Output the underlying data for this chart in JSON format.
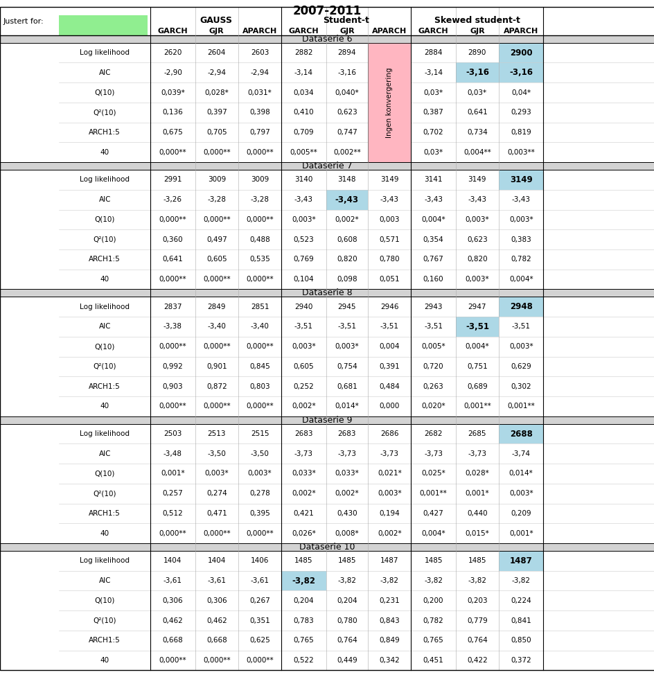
{
  "title": "2007-2011",
  "justert_for_label": "Justert for:",
  "green_box_color": "#90EE90",
  "header_group_labels": [
    "GAUSS",
    "Student-t",
    "Skewed student-t"
  ],
  "col_labels": [
    "GARCH",
    "GJR",
    "APARCH",
    "GARCH",
    "GJR",
    "APARCH",
    "GARCH",
    "GJR",
    "APARCH"
  ],
  "ingen_color": "#FFB6C1",
  "section_header_bg": "#D3D3D3",
  "highlight_color": "#ADD8E6",
  "dataseries": [
    {
      "name": "Dataserie 6",
      "ingen_col": 5,
      "highlight_log_col": 8,
      "highlight_aic_cols": [
        7,
        8
      ],
      "rows": [
        {
          "label": "Log likelihood",
          "values": [
            "2620",
            "2604",
            "2603",
            "2882",
            "2894",
            "",
            "2884",
            "2890",
            "2900"
          ]
        },
        {
          "label": "AIC",
          "values": [
            "-2,90",
            "-2,94",
            "-2,94",
            "-3,14",
            "-3,16",
            "",
            "-3,14",
            "-3,16",
            "-3,16"
          ]
        },
        {
          "label": "Q(10)",
          "values": [
            "0,039*",
            "0,028*",
            "0,031*",
            "0,034",
            "0,040*",
            "",
            "0,03*",
            "0,03*",
            "0,04*"
          ]
        },
        {
          "label": "Q²(10)",
          "values": [
            "0,136",
            "0,397",
            "0,398",
            "0,410",
            "0,623",
            "",
            "0,387",
            "0,641",
            "0,293"
          ]
        },
        {
          "label": "ARCH1:5",
          "values": [
            "0,675",
            "0,705",
            "0,797",
            "0,709",
            "0,747",
            "",
            "0,702",
            "0,734",
            "0,819"
          ]
        },
        {
          "label": "40",
          "values": [
            "0,000**",
            "0,000**",
            "0,000**",
            "0,005**",
            "0,002**",
            "",
            "0,03*",
            "0,004**",
            "0,003**"
          ]
        }
      ]
    },
    {
      "name": "Dataserie 7",
      "ingen_col": -1,
      "highlight_log_col": 8,
      "highlight_aic_cols": [
        4
      ],
      "rows": [
        {
          "label": "Log likelihood",
          "values": [
            "2991",
            "3009",
            "3009",
            "3140",
            "3148",
            "3149",
            "3141",
            "3149",
            "3149"
          ]
        },
        {
          "label": "AIC",
          "values": [
            "-3,26",
            "-3,28",
            "-3,28",
            "-3,43",
            "-3,43",
            "-3,43",
            "-3,43",
            "-3,43",
            "-3,43"
          ]
        },
        {
          "label": "Q(10)",
          "values": [
            "0,000**",
            "0,000**",
            "0,000**",
            "0,003*",
            "0,002*",
            "0,003",
            "0,004*",
            "0,003*",
            "0,003*"
          ]
        },
        {
          "label": "Q²(10)",
          "values": [
            "0,360",
            "0,497",
            "0,488",
            "0,523",
            "0,608",
            "0,571",
            "0,354",
            "0,623",
            "0,383"
          ]
        },
        {
          "label": "ARCH1:5",
          "values": [
            "0,641",
            "0,605",
            "0,535",
            "0,769",
            "0,820",
            "0,780",
            "0,767",
            "0,820",
            "0,782"
          ]
        },
        {
          "label": "40",
          "values": [
            "0,000**",
            "0,000**",
            "0,000**",
            "0,104",
            "0,098",
            "0,051",
            "0,160",
            "0,003*",
            "0,004*"
          ]
        }
      ]
    },
    {
      "name": "Dataserie 8",
      "ingen_col": -1,
      "highlight_log_col": 8,
      "highlight_aic_cols": [
        7
      ],
      "rows": [
        {
          "label": "Log likelihood",
          "values": [
            "2837",
            "2849",
            "2851",
            "2940",
            "2945",
            "2946",
            "2943",
            "2947",
            "2948"
          ]
        },
        {
          "label": "AIC",
          "values": [
            "-3,38",
            "-3,40",
            "-3,40",
            "-3,51",
            "-3,51",
            "-3,51",
            "-3,51",
            "-3,51",
            "-3,51"
          ]
        },
        {
          "label": "Q(10)",
          "values": [
            "0,000**",
            "0,000**",
            "0,000**",
            "0,003*",
            "0,003*",
            "0,004",
            "0,005*",
            "0,004*",
            "0,003*"
          ]
        },
        {
          "label": "Q²(10)",
          "values": [
            "0,992",
            "0,901",
            "0,845",
            "0,605",
            "0,754",
            "0,391",
            "0,720",
            "0,751",
            "0,629"
          ]
        },
        {
          "label": "ARCH1:5",
          "values": [
            "0,903",
            "0,872",
            "0,803",
            "0,252",
            "0,681",
            "0,484",
            "0,263",
            "0,689",
            "0,302"
          ]
        },
        {
          "label": "40",
          "values": [
            "0,000**",
            "0,000**",
            "0,000**",
            "0,002*",
            "0,014*",
            "0,000",
            "0,020*",
            "0,001**",
            "0,001**"
          ]
        }
      ]
    },
    {
      "name": "Dataserie 9",
      "ingen_col": -1,
      "highlight_log_col": 8,
      "highlight_aic_cols": [],
      "rows": [
        {
          "label": "Log likelihood",
          "values": [
            "2503",
            "2513",
            "2515",
            "2683",
            "2683",
            "2686",
            "2682",
            "2685",
            "2688"
          ]
        },
        {
          "label": "AIC",
          "values": [
            "-3,48",
            "-3,50",
            "-3,50",
            "-3,73",
            "-3,73",
            "-3,73",
            "-3,73",
            "-3,73",
            "-3,74"
          ]
        },
        {
          "label": "Q(10)",
          "values": [
            "0,001*",
            "0,003*",
            "0,003*",
            "0,033*",
            "0,033*",
            "0,021*",
            "0,025*",
            "0,028*",
            "0,014*"
          ]
        },
        {
          "label": "Q²(10)",
          "values": [
            "0,257",
            "0,274",
            "0,278",
            "0,002*",
            "0,002*",
            "0,003*",
            "0,001**",
            "0,001*",
            "0,003*"
          ]
        },
        {
          "label": "ARCH1:5",
          "values": [
            "0,512",
            "0,471",
            "0,395",
            "0,421",
            "0,430",
            "0,194",
            "0,427",
            "0,440",
            "0,209"
          ]
        },
        {
          "label": "40",
          "values": [
            "0,000**",
            "0,000**",
            "0,000**",
            "0,026*",
            "0,008*",
            "0,002*",
            "0,004*",
            "0,015*",
            "0,001*"
          ]
        }
      ]
    },
    {
      "name": "Dataserie 10",
      "ingen_col": -1,
      "highlight_log_col": 8,
      "highlight_aic_cols": [
        3
      ],
      "rows": [
        {
          "label": "Log likelihood",
          "values": [
            "1404",
            "1404",
            "1406",
            "1485",
            "1485",
            "1487",
            "1485",
            "1485",
            "1487"
          ]
        },
        {
          "label": "AIC",
          "values": [
            "-3,61",
            "-3,61",
            "-3,61",
            "-3,82",
            "-3,82",
            "-3,82",
            "-3,82",
            "-3,82",
            "-3,82"
          ]
        },
        {
          "label": "Q(10)",
          "values": [
            "0,306",
            "0,306",
            "0,267",
            "0,204",
            "0,204",
            "0,231",
            "0,200",
            "0,203",
            "0,224"
          ]
        },
        {
          "label": "Q²(10)",
          "values": [
            "0,462",
            "0,462",
            "0,351",
            "0,783",
            "0,780",
            "0,843",
            "0,782",
            "0,779",
            "0,841"
          ]
        },
        {
          "label": "ARCH1:5",
          "values": [
            "0,668",
            "0,668",
            "0,625",
            "0,765",
            "0,764",
            "0,849",
            "0,765",
            "0,764",
            "0,850"
          ]
        },
        {
          "label": "40",
          "values": [
            "0,000**",
            "0,000**",
            "0,000**",
            "0,522",
            "0,449",
            "0,342",
            "0,451",
            "0,422",
            "0,372"
          ]
        }
      ]
    }
  ]
}
